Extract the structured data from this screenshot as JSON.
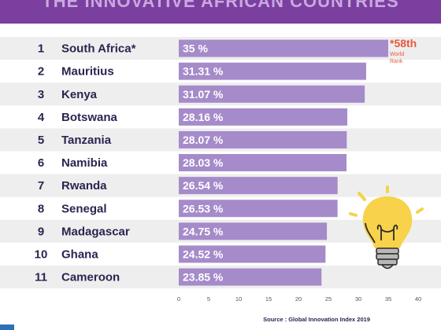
{
  "header": {
    "title": "THE INNOVATIVE AFRICAN COUNTRIES"
  },
  "annotation": {
    "rank_value": "*58th",
    "rank_caption_1": "World",
    "rank_caption_2": "Rank"
  },
  "source": "Source : Global Innovation Index 2019",
  "colors": {
    "bar": "#a58bca",
    "row_alt": "#eeeeee",
    "title_bg": "#7b3fa0",
    "text": "#2e2350",
    "note": "#e8593b",
    "bulb": "#f7d24a"
  },
  "chart_data": {
    "type": "bar",
    "orientation": "horizontal",
    "ranks": [
      "1",
      "2",
      "3",
      "4",
      "5",
      "6",
      "7",
      "8",
      "9",
      "10",
      "11"
    ],
    "categories": [
      "South Africa*",
      "Mauritius",
      "Kenya",
      "Botswana",
      "Tanzania",
      "Namibia",
      "Rwanda",
      "Senegal",
      "Madagascar",
      "Ghana",
      "Cameroon"
    ],
    "values": [
      35,
      31.31,
      31.07,
      28.16,
      28.07,
      28.03,
      26.54,
      26.53,
      24.75,
      24.52,
      23.85
    ],
    "value_labels": [
      "35 %",
      "31.31 %",
      "31.07 %",
      "28.16 %",
      "28.07 %",
      "28.03 %",
      "26.54 %",
      "26.53 %",
      "24.75 %",
      "24.52 %",
      "23.85 %"
    ],
    "xlim": [
      0,
      40
    ],
    "xticks": [
      "0",
      "5",
      "10",
      "15",
      "20",
      "25",
      "30",
      "35",
      "40"
    ]
  }
}
